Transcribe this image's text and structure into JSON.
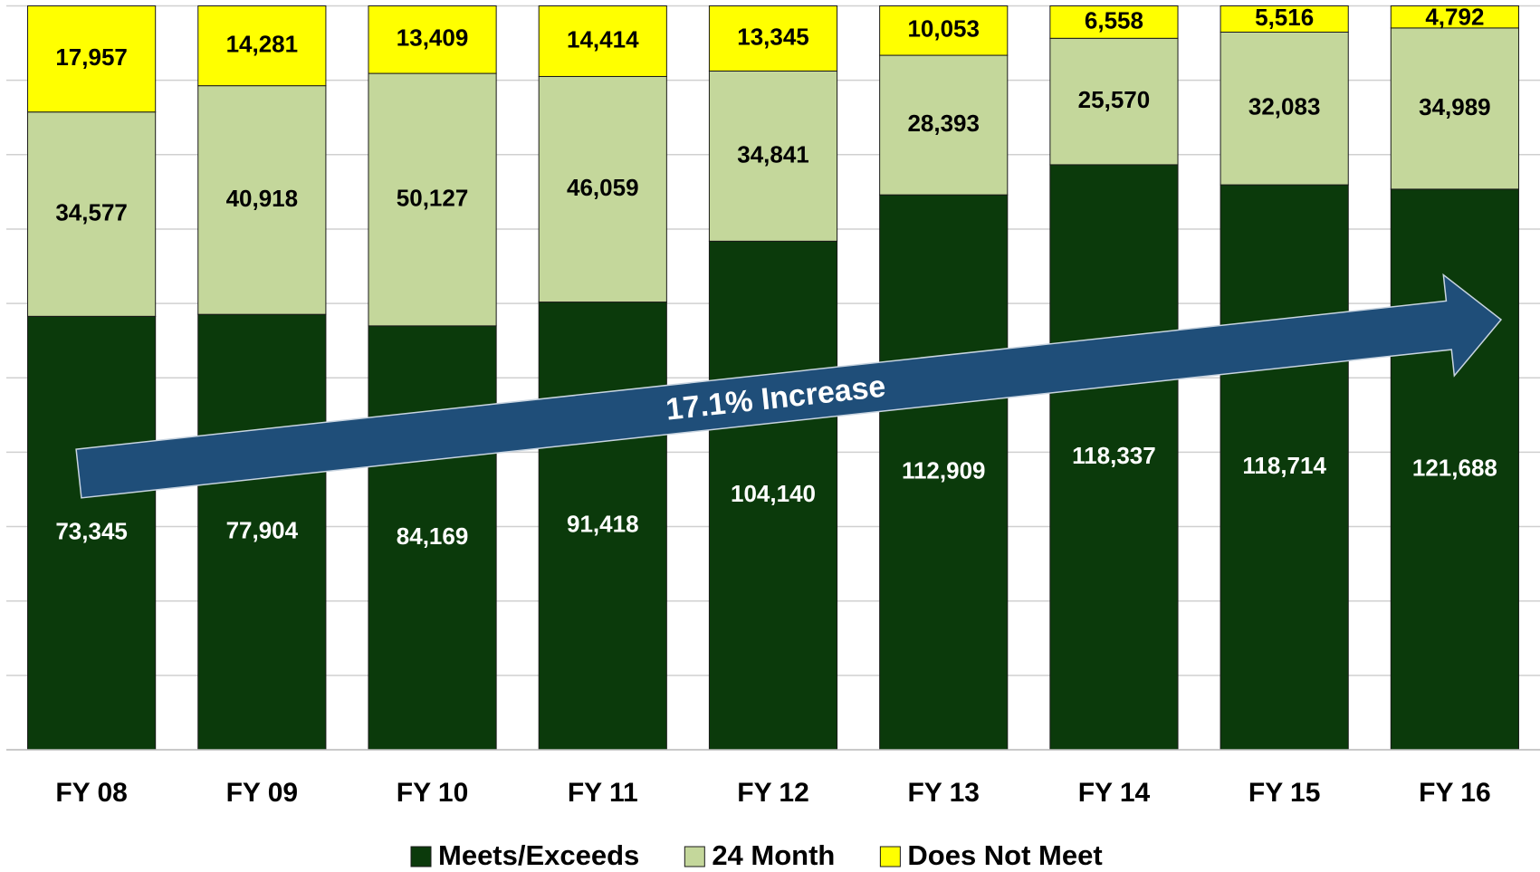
{
  "chart_data": {
    "type": "bar",
    "stacking": "percent",
    "categories": [
      "FY 08",
      "FY 09",
      "FY 10",
      "FY 11",
      "FY 12",
      "FY 13",
      "FY 14",
      "FY 15",
      "FY 16"
    ],
    "series": [
      {
        "name": "Meets/Exceeds",
        "color": "#0b3a0b",
        "label_color": "#ffffff",
        "values": [
          73345,
          77904,
          84169,
          91418,
          104140,
          112909,
          118337,
          118714,
          121688
        ],
        "value_labels": [
          "73,345",
          "77,904",
          "84,169",
          "91,418",
          "104,140",
          "112,909",
          "118,337",
          "118,714",
          "121,688"
        ]
      },
      {
        "name": "24 Month",
        "color": "#c4d79b",
        "label_color": "#000000",
        "values": [
          34577,
          40918,
          50127,
          46059,
          34841,
          28393,
          25570,
          32083,
          34989
        ],
        "value_labels": [
          "34,577",
          "40,918",
          "50,127",
          "46,059",
          "34,841",
          "28,393",
          "25,570",
          "32,083",
          "34,989"
        ]
      },
      {
        "name": "Does Not Meet",
        "color": "#ffff00",
        "label_color": "#000000",
        "values": [
          17957,
          14281,
          13409,
          14414,
          13345,
          10053,
          6558,
          5516,
          4792
        ],
        "value_labels": [
          "17,957",
          "14,281",
          "13,409",
          "14,414",
          "13,345",
          "10,053",
          "6,558",
          "5,516",
          "4,792"
        ]
      }
    ],
    "ylim": [
      0,
      100
    ],
    "yticks": [
      0,
      10,
      20,
      30,
      40,
      50,
      60,
      70,
      80,
      90,
      100
    ],
    "grid": true,
    "legend": "bottom",
    "annotation": {
      "text": "17.1% Increase",
      "color": "#1f4e79"
    }
  }
}
